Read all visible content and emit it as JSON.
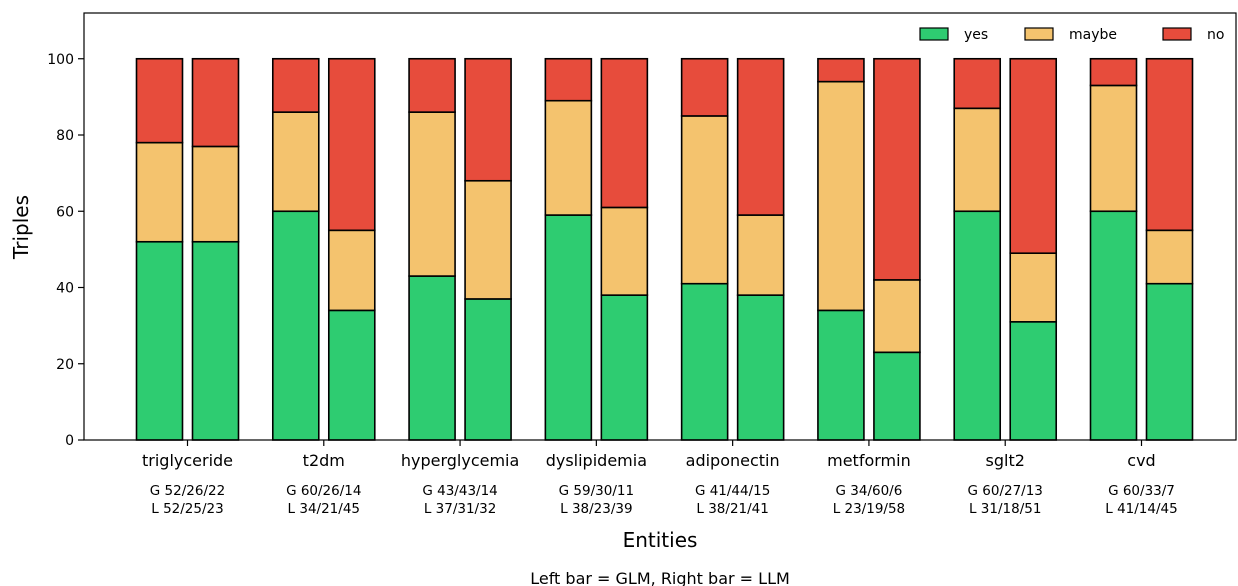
{
  "chart_data": {
    "type": "bar",
    "stacked": true,
    "grouped": true,
    "xlabel": "Entities",
    "ylabel": "Triples",
    "ylim": [
      0,
      112
    ],
    "yticks": [
      0,
      20,
      40,
      60,
      80,
      100
    ],
    "caption": "Left bar = GLM, Right bar = LLM",
    "legend_position": "top-right",
    "categories": [
      "triglyceride",
      "t2dm",
      "hyperglycemia",
      "dyslipidemia",
      "adiponectin",
      "metformin",
      "sglt2",
      "cvd"
    ],
    "group_labels": [
      [
        "G 52/26/22",
        "L 52/25/23"
      ],
      [
        "G 60/26/14",
        "L 34/21/45"
      ],
      [
        "G 43/43/14",
        "L 37/31/32"
      ],
      [
        "G 59/30/11",
        "L 38/23/39"
      ],
      [
        "G 41/44/15",
        "L 38/21/41"
      ],
      [
        "G 34/60/6",
        "L 23/19/58"
      ],
      [
        "G 60/27/13",
        "L 31/18/51"
      ],
      [
        "G 60/33/7",
        "L 41/14/45"
      ]
    ],
    "bars": [
      "GLM",
      "LLM"
    ],
    "series": [
      {
        "name": "yes",
        "color": "#2ecc71",
        "GLM": [
          52,
          60,
          43,
          59,
          41,
          34,
          60,
          60
        ],
        "LLM": [
          52,
          34,
          37,
          38,
          38,
          23,
          31,
          41
        ]
      },
      {
        "name": "maybe",
        "color": "#f4c36e",
        "GLM": [
          26,
          26,
          43,
          30,
          44,
          60,
          27,
          33
        ],
        "LLM": [
          25,
          21,
          31,
          23,
          21,
          19,
          18,
          14
        ]
      },
      {
        "name": "no",
        "color": "#e74c3c",
        "GLM": [
          22,
          14,
          14,
          11,
          15,
          6,
          13,
          7
        ],
        "LLM": [
          23,
          45,
          32,
          39,
          41,
          58,
          51,
          45
        ]
      }
    ]
  }
}
